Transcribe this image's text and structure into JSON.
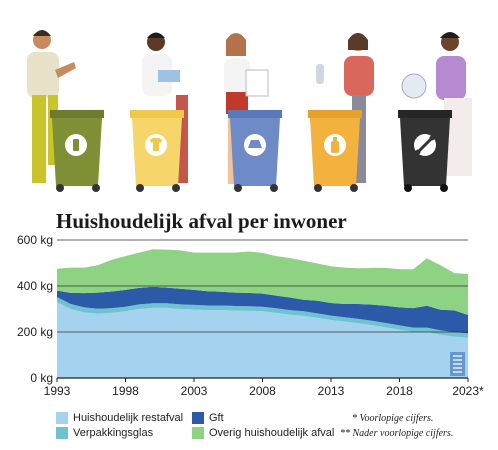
{
  "title": "Huishoudelijk afval per inwoner",
  "bin_icons": [
    "glass-bottle-icon",
    "shirt-icon",
    "plastic-packaging-icon",
    "bottle-icon",
    "fish-bone-icon"
  ],
  "chart_data": {
    "type": "area",
    "stacked": true,
    "title": "Huishoudelijk afval per inwoner",
    "xlabel": "",
    "ylabel": "",
    "ylim": [
      0,
      600
    ],
    "xlim": [
      1993,
      2023
    ],
    "y_ticks": [
      0,
      200,
      400,
      600
    ],
    "y_tick_labels": [
      "0 kg",
      "200 kg",
      "400 kg",
      "600 kg"
    ],
    "x_ticks": [
      1993,
      1998,
      2003,
      2008,
      2013,
      2018,
      2023
    ],
    "x_tick_labels": [
      "1993",
      "1998",
      "2003",
      "2008",
      "2013",
      "2018",
      "2023*"
    ],
    "grid": true,
    "legend_position": "bottom",
    "x": [
      1993,
      1994,
      1995,
      1996,
      1997,
      1998,
      1999,
      2000,
      2001,
      2002,
      2003,
      2004,
      2005,
      2006,
      2007,
      2008,
      2009,
      2010,
      2011,
      2012,
      2013,
      2014,
      2015,
      2016,
      2017,
      2018,
      2019,
      2020,
      2021,
      2022,
      2023
    ],
    "series": [
      {
        "name": "Huishoudelijk restafval",
        "color": "#a5d3ef",
        "values": [
          330,
          300,
          285,
          280,
          283,
          290,
          300,
          305,
          305,
          300,
          298,
          295,
          295,
          293,
          292,
          290,
          283,
          275,
          270,
          262,
          252,
          245,
          238,
          230,
          220,
          210,
          200,
          200,
          188,
          180,
          175
        ]
      },
      {
        "name": "Verpakkingsglas",
        "color": "#6fc2cf",
        "values": [
          22,
          22,
          22,
          21,
          21,
          20,
          20,
          20,
          20,
          20,
          20,
          20,
          20,
          20,
          20,
          20,
          20,
          20,
          20,
          19,
          19,
          19,
          19,
          19,
          19,
          19,
          19,
          19,
          19,
          19,
          19
        ]
      },
      {
        "name": "Gft",
        "color": "#2c5aa8",
        "values": [
          28,
          48,
          62,
          70,
          72,
          73,
          72,
          72,
          68,
          68,
          65,
          62,
          60,
          58,
          58,
          57,
          55,
          55,
          50,
          55,
          55,
          58,
          65,
          70,
          75,
          78,
          85,
          95,
          90,
          95,
          80
        ]
      },
      {
        "name": "Overig huishoudelijk afval",
        "color": "#8ed383",
        "values": [
          95,
          110,
          111,
          120,
          138,
          147,
          153,
          163,
          165,
          167,
          162,
          168,
          170,
          174,
          180,
          177,
          172,
          172,
          170,
          162,
          160,
          158,
          155,
          159,
          165,
          166,
          169,
          206,
          193,
          162,
          178
        ]
      }
    ],
    "legend": [
      "Huishoudelijk restafval",
      "Gft",
      "Verpakkingsglas",
      "Overig huishoudelijk afval"
    ],
    "notes": [
      "* Voorlopige cijfers.",
      "** Nader voorlopige cijfers."
    ]
  }
}
